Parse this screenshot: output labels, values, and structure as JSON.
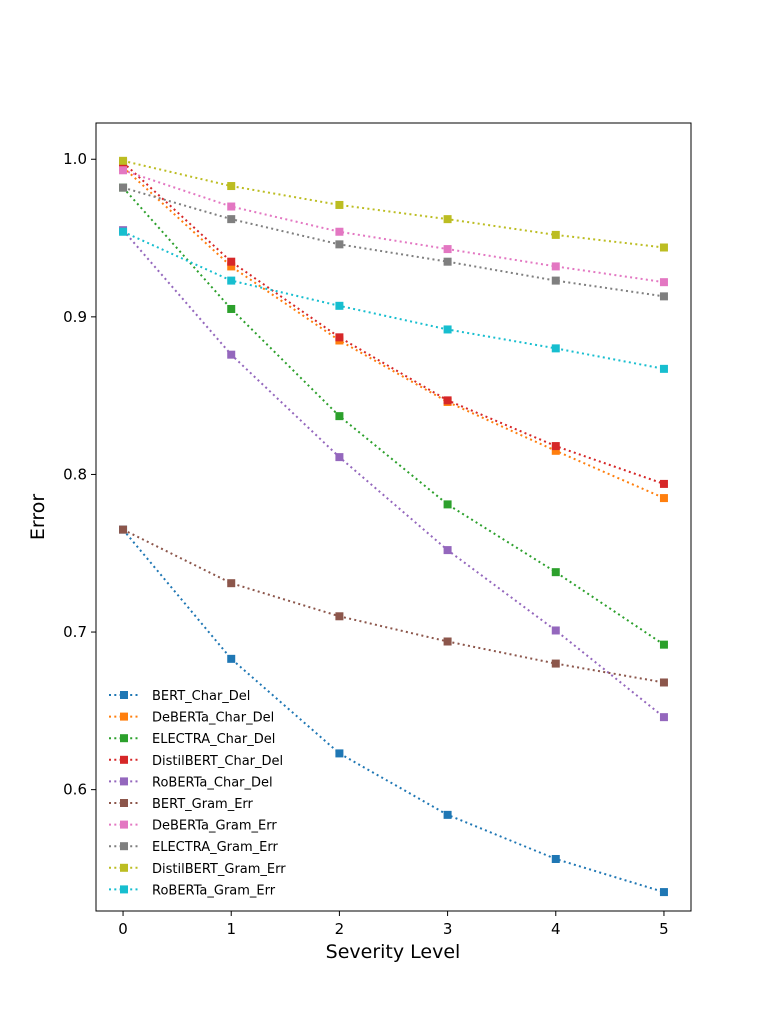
{
  "chart_data": {
    "type": "line",
    "title": "",
    "xlabel": "Severity Level",
    "ylabel": "Error",
    "x": [
      0,
      1,
      2,
      3,
      4,
      5
    ],
    "xticks": [
      "0",
      "1",
      "2",
      "3",
      "4",
      "5"
    ],
    "yticks": [
      "0.6",
      "0.7",
      "0.8",
      "0.9",
      "1.0"
    ],
    "xlim": [
      -0.25,
      5.25
    ],
    "ylim": [
      0.523,
      1.023
    ],
    "grid": false,
    "legend_position": "lower-left",
    "line_style": "dotted",
    "marker": "square",
    "series": [
      {
        "name": "BERT_Char_Del",
        "color": "#1f77b4",
        "values": [
          0.765,
          0.683,
          0.623,
          0.584,
          0.556,
          0.535
        ]
      },
      {
        "name": "DeBERTa_Char_Del",
        "color": "#ff7f0e",
        "values": [
          0.995,
          0.932,
          0.885,
          0.846,
          0.815,
          0.785
        ]
      },
      {
        "name": "ELECTRA_Char_Del",
        "color": "#2ca02c",
        "values": [
          0.982,
          0.905,
          0.837,
          0.781,
          0.738,
          0.692
        ]
      },
      {
        "name": "DistilBERT_Char_Del",
        "color": "#d62728",
        "values": [
          0.998,
          0.935,
          0.887,
          0.847,
          0.818,
          0.794
        ]
      },
      {
        "name": "RoBERTa_Char_Del",
        "color": "#9467bd",
        "values": [
          0.955,
          0.876,
          0.811,
          0.752,
          0.701,
          0.646
        ]
      },
      {
        "name": "BERT_Gram_Err",
        "color": "#8c564b",
        "values": [
          0.765,
          0.731,
          0.71,
          0.694,
          0.68,
          0.668
        ]
      },
      {
        "name": "DeBERTa_Gram_Err",
        "color": "#e377c2",
        "values": [
          0.993,
          0.97,
          0.954,
          0.943,
          0.932,
          0.922
        ]
      },
      {
        "name": "ELECTRA_Gram_Err",
        "color": "#7f7f7f",
        "values": [
          0.982,
          0.962,
          0.946,
          0.935,
          0.923,
          0.913
        ]
      },
      {
        "name": "DistilBERT_Gram_Err",
        "color": "#bcbd22",
        "values": [
          0.999,
          0.983,
          0.971,
          0.962,
          0.952,
          0.944
        ]
      },
      {
        "name": "RoBERTa_Gram_Err",
        "color": "#17becf",
        "values": [
          0.954,
          0.923,
          0.907,
          0.892,
          0.88,
          0.867
        ]
      }
    ]
  }
}
